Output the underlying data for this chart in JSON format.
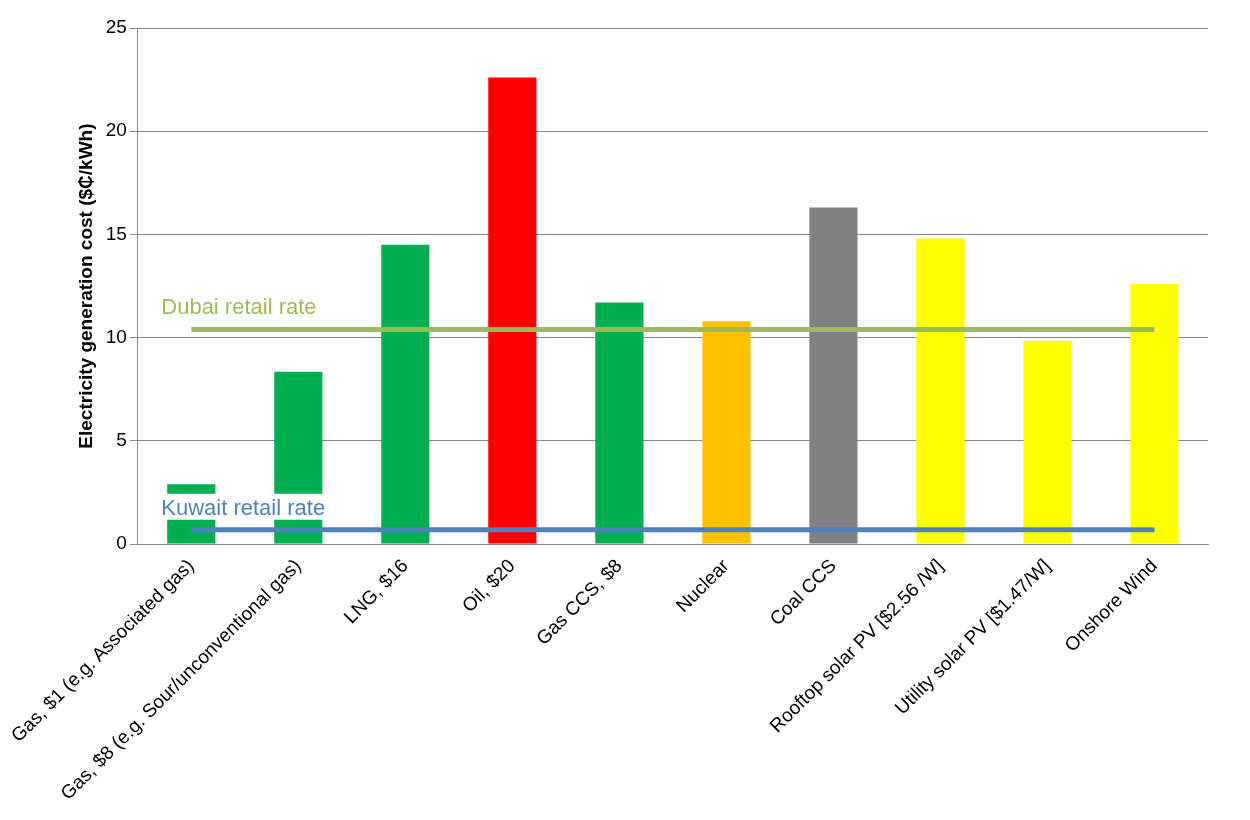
{
  "chart_data": {
    "type": "bar",
    "ylabel": "Electricity generation cost ($₵/kWh)",
    "categories": [
      "Gas, $1 (e.g. Associated gas)",
      "Gas, $8 (e.g. Sour/unconventional gas)",
      "LNG, $16",
      "Oil, $20",
      "Gas CCS, $8",
      "Nuclear",
      "Coal CCS",
      "Rooftop solar PV [$2.56 /W]",
      "Utility solar PV [$1.47/W]",
      "Onshore Wind"
    ],
    "series": [
      {
        "values": [
          2.9,
          8.35,
          14.5,
          22.6,
          11.7,
          10.8,
          16.3,
          14.8,
          9.85,
          12.6
        ],
        "colors": [
          "#00b050",
          "#00b050",
          "#00b050",
          "#ff0000",
          "#00b050",
          "#ffc000",
          "#808080",
          "#ffff00",
          "#ffff00",
          "#ffff00"
        ]
      },
      {
        "type": "line",
        "name": "Dubai retail rate",
        "color": "#9bbb59",
        "values": [
          10.4,
          10.4,
          10.4,
          10.4,
          10.4,
          10.4,
          10.4,
          10.4,
          10.4,
          10.4
        ]
      },
      {
        "type": "line",
        "name": "Kuwait retail rate",
        "color": "#4f81bd",
        "values": [
          0.7,
          0.7,
          0.7,
          0.7,
          0.7,
          0.7,
          0.7,
          0.7,
          0.7,
          0.7
        ]
      }
    ],
    "ylim": [
      0,
      25
    ],
    "yticks": [
      0,
      5,
      10,
      15,
      20,
      25
    ],
    "grid": "y",
    "legend": false
  }
}
